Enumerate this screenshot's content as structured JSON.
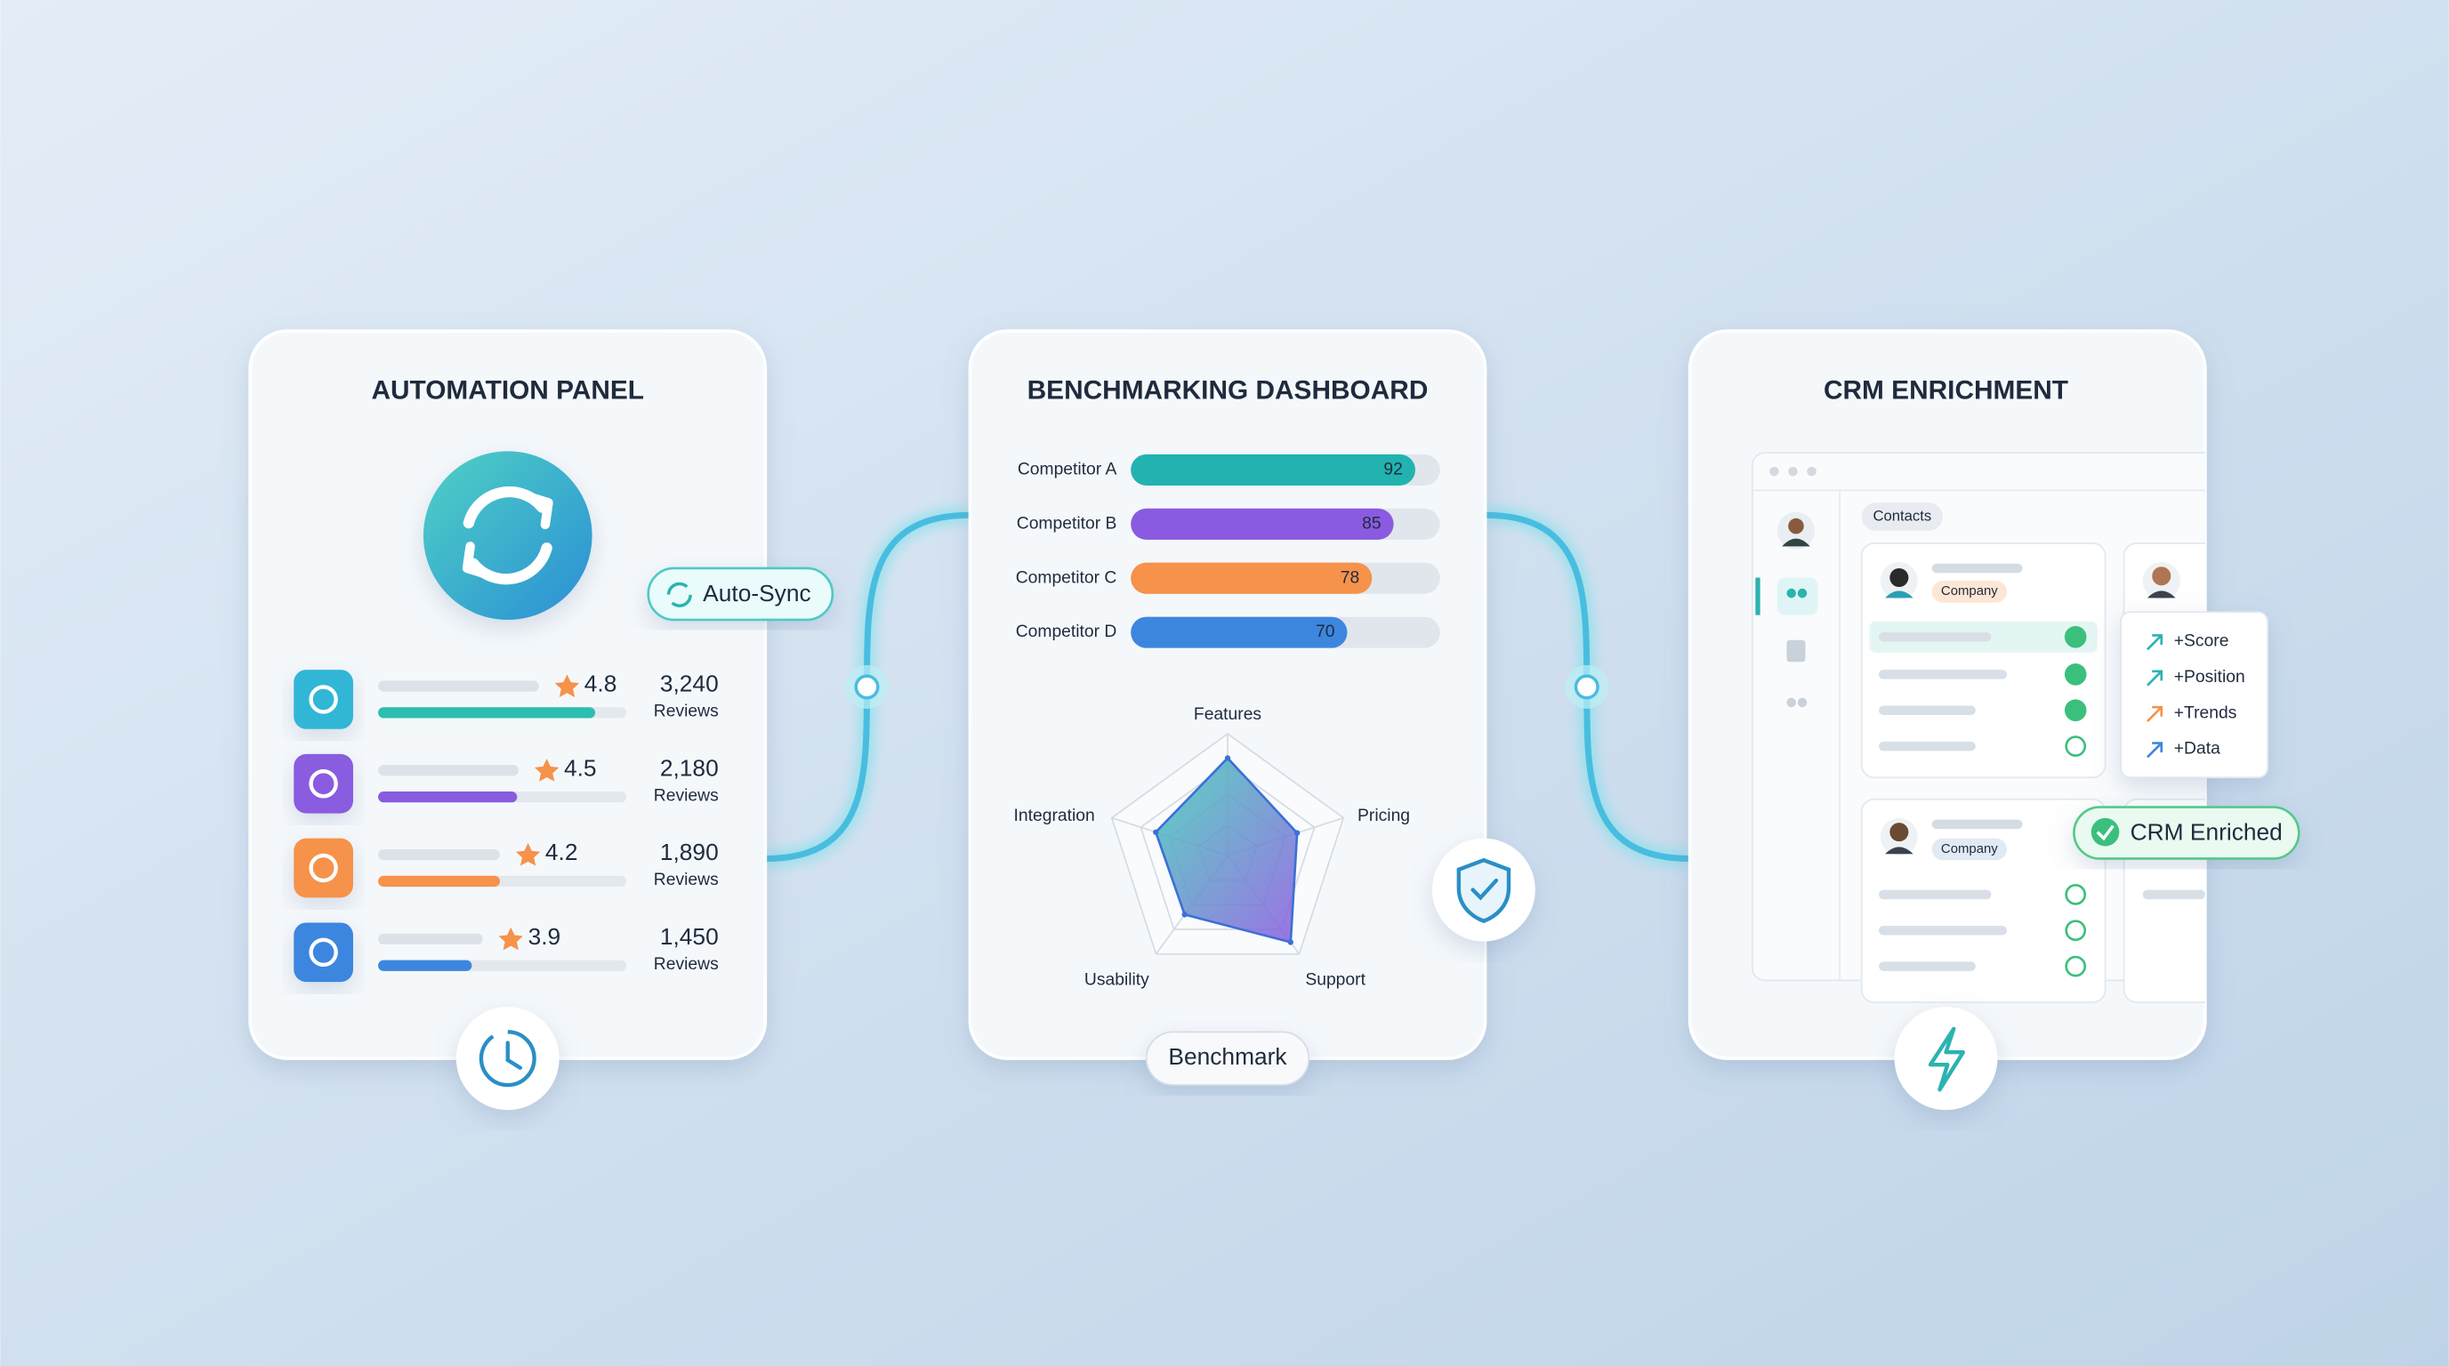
{
  "panels": [
    {
      "title": "AUTOMATION PANEL",
      "badge": "Auto-Sync",
      "items": [
        {
          "rating": 4.8,
          "reviews": "3,240",
          "reviews_label": "Reviews"
        },
        {
          "rating": 4.5,
          "reviews": "2,180",
          "reviews_label": "Reviews"
        },
        {
          "rating": 4.2,
          "reviews": "1,890",
          "reviews_label": "Reviews"
        },
        {
          "rating": 3.9,
          "reviews": "1,450",
          "reviews_label": "Reviews"
        }
      ]
    },
    {
      "title": "BENCHMARKING DASHBOARD",
      "bars": {
        "type": "bar",
        "categories": [
          "Competitor A",
          "Competitor B",
          "Competitor C",
          "Competitor D"
        ],
        "values": [
          92,
          85,
          78,
          70
        ],
        "colors": [
          "#22b3b0",
          "#8a5be0",
          "#f6924a",
          "#3d86e0"
        ],
        "xlim": [
          0,
          100
        ]
      },
      "radar": {
        "type": "radar",
        "axes": [
          "Features",
          "Pricing",
          "Support",
          "Usability",
          "Integration"
        ],
        "values": [
          80,
          60,
          88,
          60,
          62
        ],
        "rlim": [
          0,
          100
        ],
        "color": "#2cbfb0"
      },
      "button": "Benchmark"
    },
    {
      "title": "CRM ENRICHMENT",
      "tab": "Contacts",
      "company_tags": [
        "Company",
        "Company"
      ],
      "enrichments": [
        "+Score",
        "+Position",
        "+Trends",
        "+Data"
      ],
      "badge": "CRM Enriched"
    }
  ]
}
